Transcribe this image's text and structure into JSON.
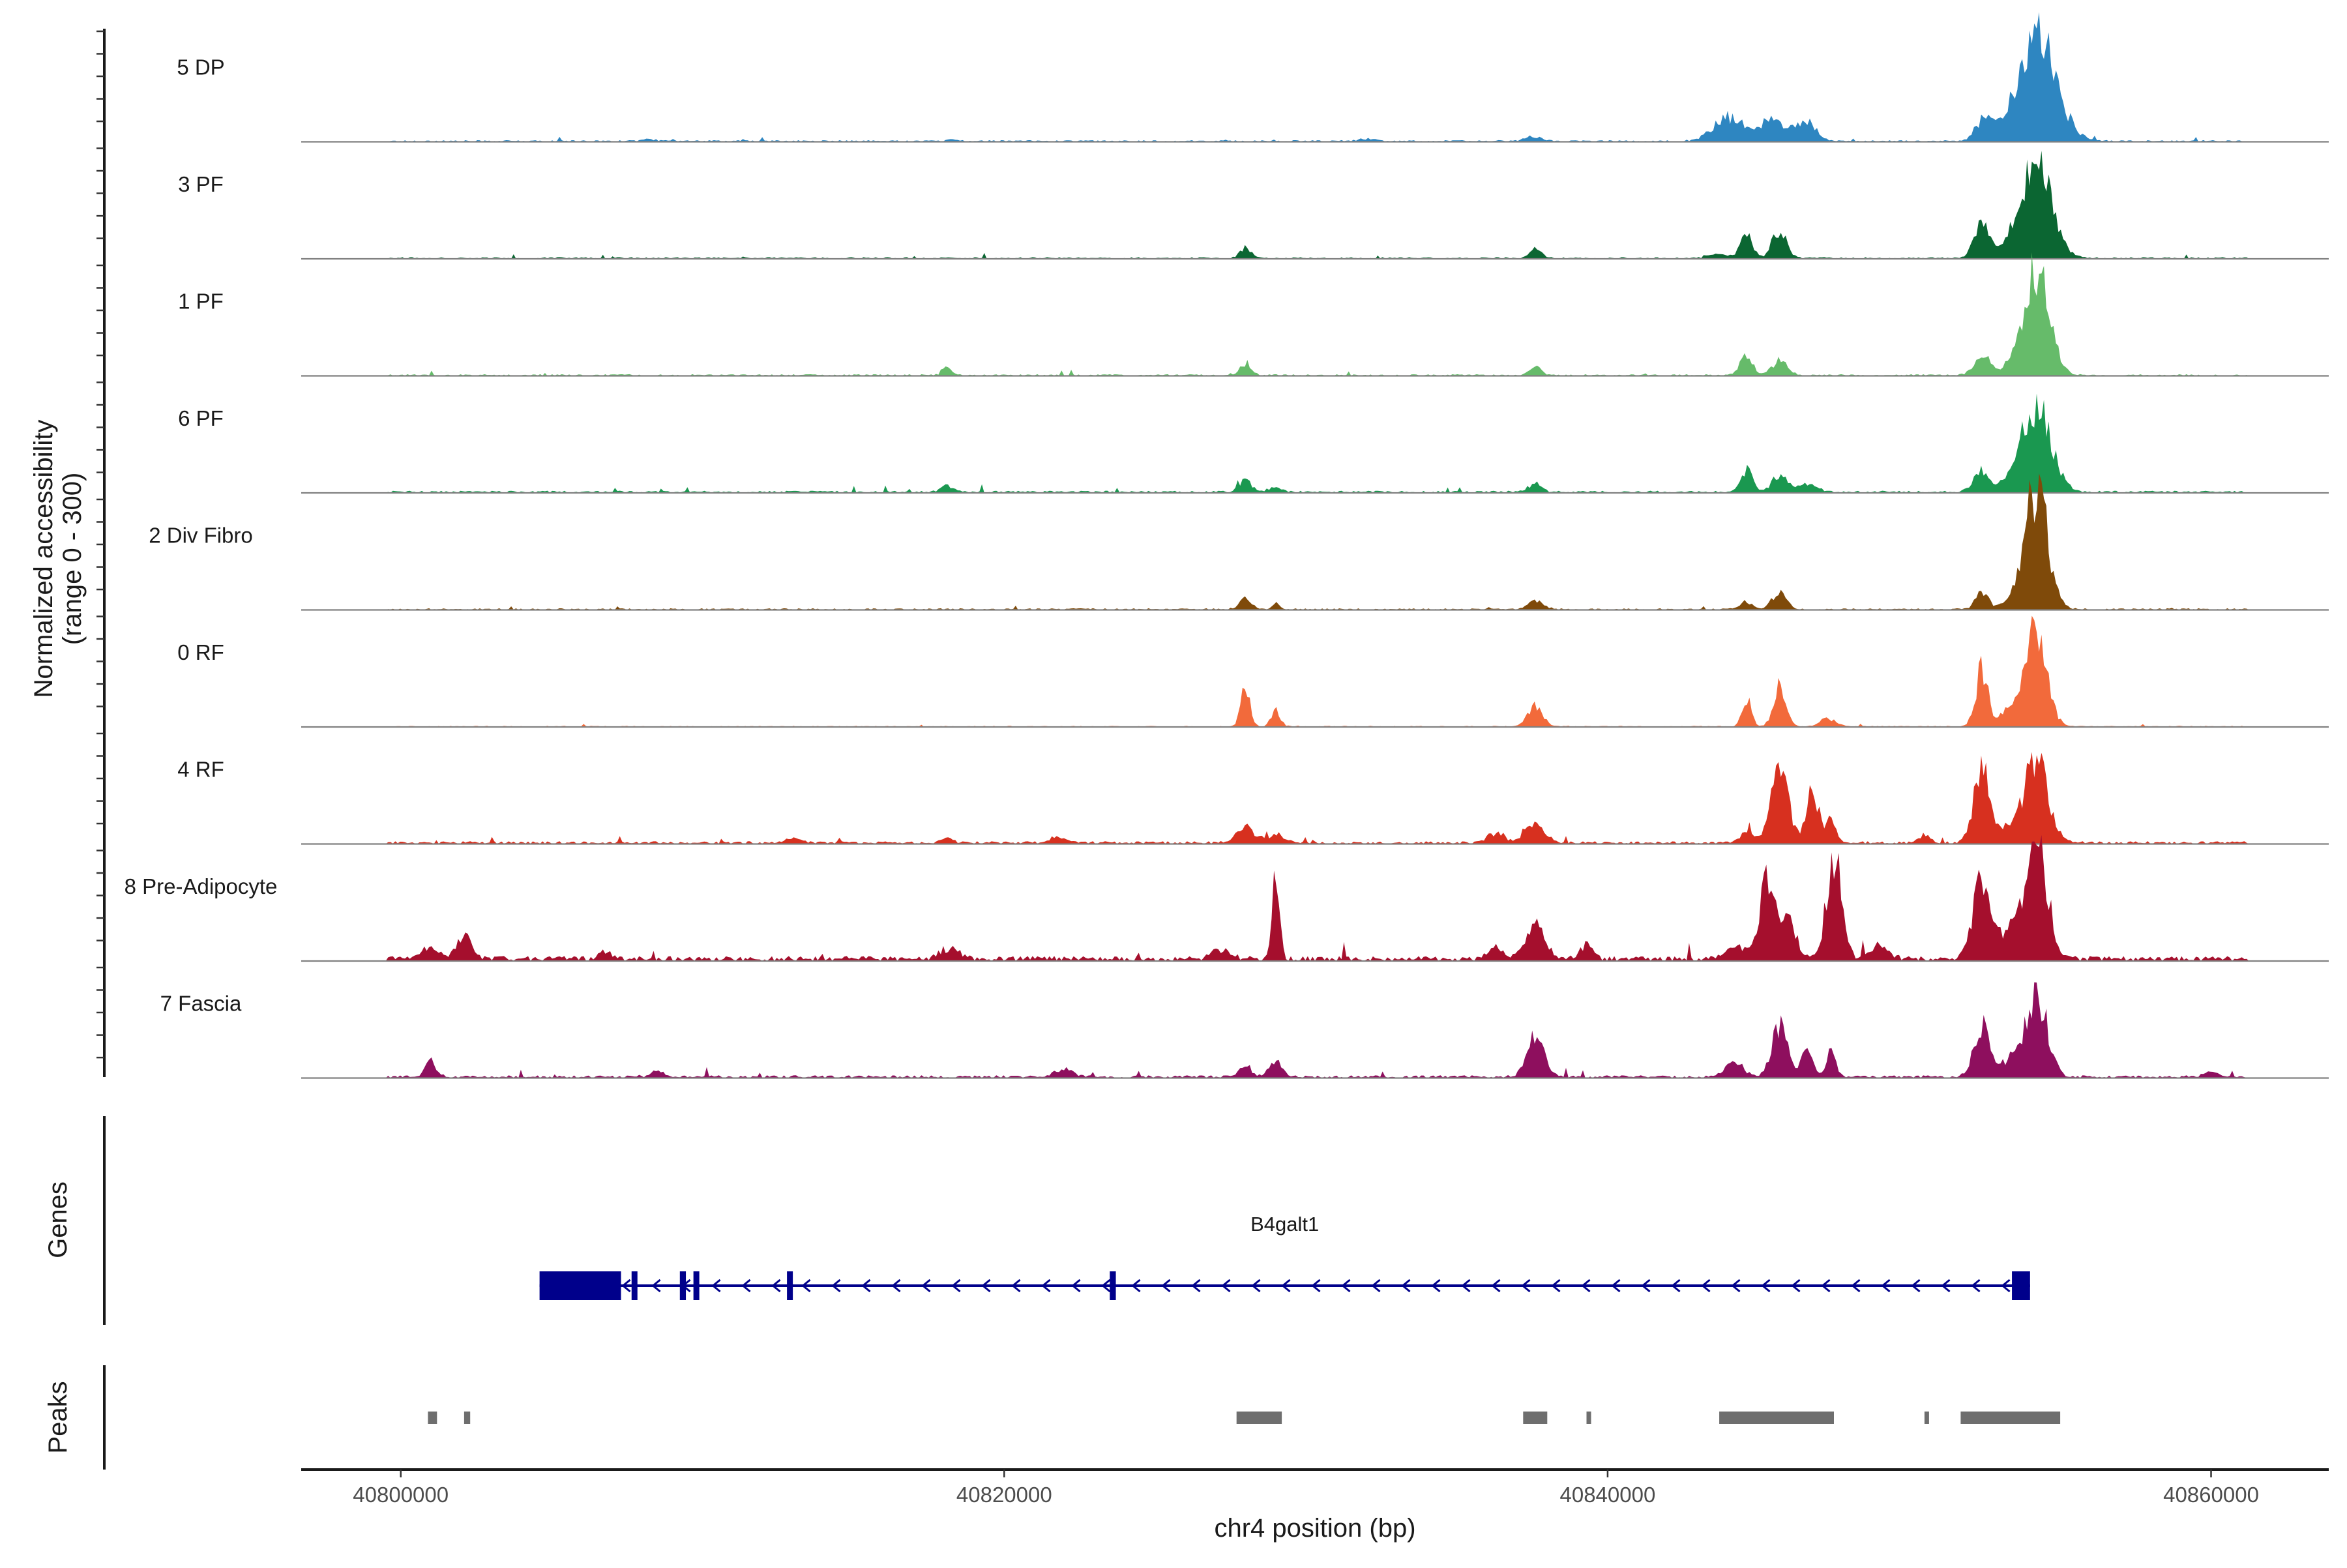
{
  "chart_data": {
    "type": "area",
    "title": "",
    "chromosome": "chr4",
    "xlabel": "chr4 position (bp)",
    "ylabel": "Normalized accessibility",
    "ylabel_range": "(range 0 - 300)",
    "xlim": [
      40796700,
      40863900
    ],
    "ylim": [
      0,
      300
    ],
    "x_ticks": [
      40800000,
      40820000,
      40840000,
      40860000
    ],
    "x_tick_labels": [
      "40800000",
      "40820000",
      "40840000",
      "40860000"
    ],
    "series": [
      {
        "name": "5 DP",
        "color": "#2E86C1",
        "base_noise": 3,
        "peaks": [
          [
            40808200,
            4,
            200
          ],
          [
            40818300,
            3,
            200
          ],
          [
            40832000,
            4,
            300
          ],
          [
            40837500,
            8,
            300
          ],
          [
            40844000,
            45,
            500
          ],
          [
            40845500,
            42,
            450
          ],
          [
            40846600,
            38,
            300
          ],
          [
            40852500,
            40,
            300
          ],
          [
            40854200,
            200,
            650
          ]
        ]
      },
      {
        "name": "3 PF",
        "color": "#0B6632",
        "base_noise": 3,
        "peaks": [
          [
            40828000,
            22,
            180
          ],
          [
            40837600,
            22,
            180
          ],
          [
            40843700,
            8,
            300
          ],
          [
            40844600,
            42,
            200
          ],
          [
            40845700,
            48,
            250
          ],
          [
            40852400,
            68,
            250
          ],
          [
            40853300,
            18,
            300
          ],
          [
            40854200,
            180,
            500
          ]
        ]
      },
      {
        "name": "1 PF",
        "color": "#66BB6A",
        "base_noise": 3,
        "peaks": [
          [
            40818100,
            14,
            150
          ],
          [
            40828000,
            22,
            180
          ],
          [
            40837600,
            18,
            180
          ],
          [
            40844600,
            40,
            200
          ],
          [
            40845700,
            28,
            250
          ],
          [
            40852400,
            40,
            250
          ],
          [
            40853300,
            12,
            300
          ],
          [
            40854200,
            210,
            420
          ]
        ]
      },
      {
        "name": "6 PF",
        "color": "#1A9850",
        "base_noise": 4,
        "peaks": [
          [
            40818100,
            12,
            200
          ],
          [
            40828000,
            22,
            220
          ],
          [
            40829000,
            10,
            200
          ],
          [
            40837600,
            16,
            220
          ],
          [
            40844600,
            42,
            200
          ],
          [
            40845700,
            32,
            250
          ],
          [
            40846600,
            16,
            300
          ],
          [
            40852400,
            40,
            250
          ],
          [
            40853300,
            16,
            300
          ],
          [
            40854200,
            170,
            480
          ]
        ]
      },
      {
        "name": "2 Div Fibro",
        "color": "#7F4A0A",
        "base_noise": 3,
        "peaks": [
          [
            40828000,
            20,
            200
          ],
          [
            40829000,
            8,
            150
          ],
          [
            40837600,
            16,
            250
          ],
          [
            40844600,
            14,
            200
          ],
          [
            40845700,
            30,
            250
          ],
          [
            40852400,
            36,
            200
          ],
          [
            40853300,
            12,
            300
          ],
          [
            40854200,
            230,
            380
          ]
        ]
      },
      {
        "name": "0 RF",
        "color": "#F26A3B",
        "base_noise": 2,
        "peaks": [
          [
            40828000,
            75,
            150
          ],
          [
            40829000,
            32,
            150
          ],
          [
            40837600,
            38,
            250
          ],
          [
            40844600,
            55,
            150
          ],
          [
            40845700,
            75,
            200
          ],
          [
            40847300,
            15,
            250
          ],
          [
            40852400,
            110,
            200
          ],
          [
            40853300,
            32,
            300
          ],
          [
            40854200,
            185,
            350
          ]
        ]
      },
      {
        "name": "4 RF",
        "color": "#D7301F",
        "base_noise": 5,
        "peaks": [
          [
            40813000,
            10,
            200
          ],
          [
            40818100,
            10,
            200
          ],
          [
            40821800,
            12,
            250
          ],
          [
            40828000,
            30,
            300
          ],
          [
            40829000,
            16,
            250
          ],
          [
            40836300,
            22,
            250
          ],
          [
            40837600,
            38,
            300
          ],
          [
            40844600,
            24,
            200
          ],
          [
            40845700,
            130,
            300
          ],
          [
            40846800,
            105,
            200
          ],
          [
            40847400,
            50,
            150
          ],
          [
            40850500,
            14,
            200
          ],
          [
            40852400,
            150,
            250
          ],
          [
            40853300,
            30,
            300
          ],
          [
            40854200,
            160,
            400
          ]
        ]
      },
      {
        "name": "8 Pre-Adipocyte",
        "color": "#A50F2D",
        "base_noise": 9,
        "peaks": [
          [
            40801000,
            22,
            250
          ],
          [
            40802100,
            40,
            250
          ],
          [
            40806800,
            18,
            200
          ],
          [
            40818200,
            22,
            300
          ],
          [
            40827200,
            18,
            300
          ],
          [
            40829000,
            150,
            120
          ],
          [
            40836300,
            22,
            250
          ],
          [
            40837600,
            70,
            300
          ],
          [
            40839300,
            28,
            200
          ],
          [
            40844300,
            26,
            300
          ],
          [
            40845300,
            150,
            250
          ],
          [
            40846000,
            70,
            250
          ],
          [
            40847500,
            200,
            250
          ],
          [
            40849000,
            24,
            300
          ],
          [
            40852400,
            145,
            300
          ],
          [
            40853300,
            60,
            300
          ],
          [
            40854200,
            250,
            350
          ]
        ]
      },
      {
        "name": "7 Fascia",
        "color": "#8E0F5E",
        "base_noise": 5,
        "peaks": [
          [
            40801000,
            30,
            180
          ],
          [
            40808500,
            12,
            200
          ],
          [
            40822000,
            14,
            300
          ],
          [
            40828000,
            22,
            200
          ],
          [
            40829000,
            30,
            200
          ],
          [
            40837600,
            75,
            280
          ],
          [
            40844200,
            26,
            300
          ],
          [
            40845700,
            95,
            250
          ],
          [
            40846600,
            44,
            200
          ],
          [
            40847400,
            50,
            150
          ],
          [
            40852400,
            100,
            250
          ],
          [
            40853300,
            30,
            300
          ],
          [
            40854200,
            165,
            350
          ],
          [
            40860000,
            10,
            200
          ]
        ]
      }
    ],
    "genes": [
      {
        "name": "B4galt1",
        "strand": "-",
        "start": 40804600,
        "end": 40854000,
        "exons": [
          [
            40804600,
            40807300
          ],
          [
            40807650,
            40807750
          ],
          [
            40809250,
            40809450
          ],
          [
            40809700,
            40809850
          ],
          [
            40812800,
            40812950
          ],
          [
            40823500,
            40823700
          ],
          [
            40853400,
            40854000
          ]
        ],
        "color": "#00008B"
      }
    ],
    "peaks": [
      [
        40800900,
        40801200
      ],
      [
        40802100,
        40802300
      ],
      [
        40827700,
        40829200
      ],
      [
        40837200,
        40838000
      ],
      [
        40839300,
        40839400
      ],
      [
        40843700,
        40847500
      ],
      [
        40850500,
        40850600
      ],
      [
        40851700,
        40855000
      ]
    ],
    "track_titles": {
      "genes": "Genes",
      "peaks": "Peaks"
    }
  }
}
